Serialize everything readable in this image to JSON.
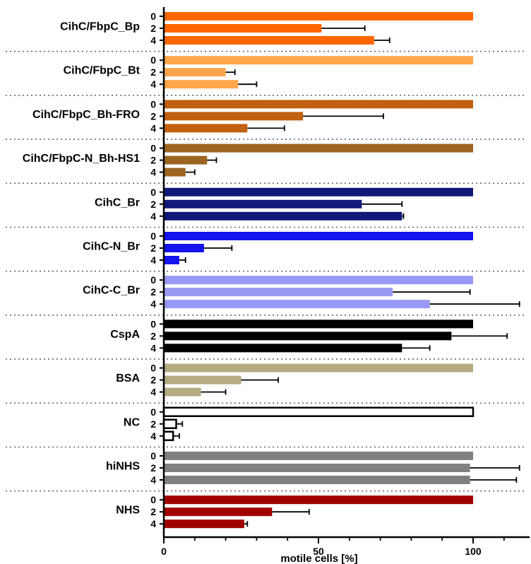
{
  "chart_data": {
    "type": "bar",
    "orientation": "horizontal",
    "xlabel": "motile cells [%]",
    "xlim": [
      0,
      115
    ],
    "x_ticks": [
      0,
      50,
      100
    ],
    "timepoints": [
      "0",
      "2",
      "4"
    ],
    "groups": [
      {
        "name": "CihC/FbpC_Bp",
        "color": "#ff6600",
        "values": [
          100,
          51,
          68
        ],
        "errors": [
          0,
          14,
          5
        ]
      },
      {
        "name": "CihC/FbpC_Bt",
        "color": "#ffa64d",
        "values": [
          100,
          20,
          24
        ],
        "errors": [
          0,
          3,
          6
        ]
      },
      {
        "name": "CihC/FbpC_Bh-FRO",
        "color": "#c06010",
        "values": [
          100,
          45,
          27
        ],
        "errors": [
          0,
          26,
          12
        ]
      },
      {
        "name": "CihC/FbpC-N_Bh-HS1",
        "color": "#9c6420",
        "values": [
          100,
          14,
          7
        ],
        "errors": [
          0,
          3,
          3
        ]
      },
      {
        "name": "CihC_Br",
        "color": "#10187a",
        "values": [
          100,
          64,
          77
        ],
        "errors": [
          0,
          13,
          0.5
        ]
      },
      {
        "name": "CihC-N_Br",
        "color": "#1414f0",
        "values": [
          100,
          13,
          5
        ],
        "errors": [
          0,
          9,
          2
        ]
      },
      {
        "name": "CihC-C_Br",
        "color": "#9999f5",
        "values": [
          100,
          74,
          86
        ],
        "errors": [
          0,
          25,
          29
        ]
      },
      {
        "name": "CspA",
        "color": "#000000",
        "values": [
          100,
          93,
          77
        ],
        "errors": [
          0,
          18,
          9
        ]
      },
      {
        "name": "BSA",
        "color": "#b5ab80",
        "values": [
          100,
          25,
          12
        ],
        "errors": [
          0,
          12,
          8
        ]
      },
      {
        "name": "NC",
        "color": "#ffffff",
        "values": [
          100,
          4,
          3
        ],
        "errors": [
          0,
          2,
          2
        ]
      },
      {
        "name": "hiNHS",
        "color": "#808080",
        "values": [
          100,
          99,
          99
        ],
        "errors": [
          0,
          16,
          15
        ]
      },
      {
        "name": "NHS",
        "color": "#a00000",
        "values": [
          100,
          35,
          26
        ],
        "errors": [
          0,
          12,
          1
        ]
      }
    ]
  }
}
